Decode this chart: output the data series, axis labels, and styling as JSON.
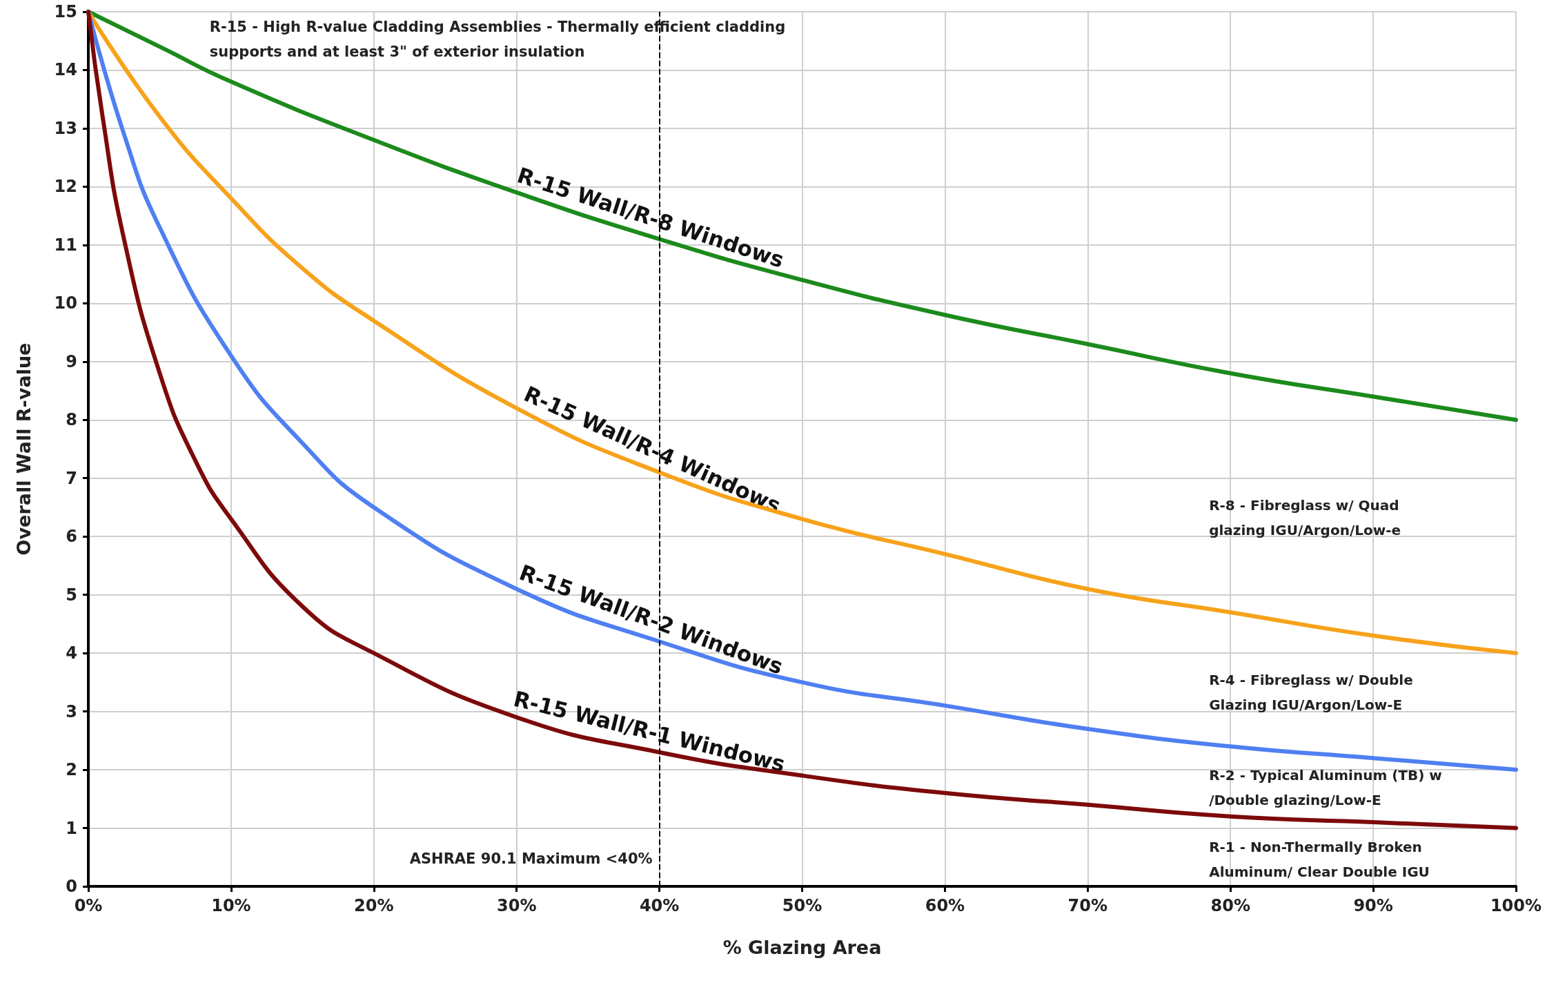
{
  "chart_data": {
    "type": "line",
    "xlabel": "% Glazing Area",
    "ylabel": "Overall Wall R-value",
    "xlim": [
      0,
      100
    ],
    "xticks": [
      {
        "value": 0,
        "label": "0%"
      },
      {
        "value": 10,
        "label": "10%"
      },
      {
        "value": 20,
        "label": "20%"
      },
      {
        "value": 30,
        "label": "30%"
      },
      {
        "value": 40,
        "label": "40%"
      },
      {
        "value": 50,
        "label": "50%"
      },
      {
        "value": 60,
        "label": "60%"
      },
      {
        "value": 70,
        "label": "70%"
      },
      {
        "value": 80,
        "label": "80%"
      },
      {
        "value": 90,
        "label": "90%"
      },
      {
        "value": 100,
        "label": "100%"
      }
    ],
    "ylim": [
      0,
      15
    ],
    "yticks": [
      0,
      1,
      2,
      3,
      4,
      5,
      6,
      7,
      8,
      9,
      10,
      11,
      12,
      13,
      14,
      15
    ],
    "grid": true,
    "legend": false,
    "marker": "none",
    "line_style": "solid",
    "series": [
      {
        "name": "R-15 Wall/R-8 Windows",
        "color": "#1c8a1c",
        "x": [
          0,
          5,
          10,
          20,
          30,
          40,
          50,
          60,
          70,
          80,
          90,
          100
        ],
        "values": [
          15,
          14.4,
          13.8,
          12.8,
          11.9,
          11.1,
          10.4,
          9.8,
          9.3,
          8.8,
          8.4,
          8
        ]
      },
      {
        "name": "R-15 Wall/R-4 Windows",
        "color": "#f7a21b",
        "x": [
          0,
          5,
          10,
          15,
          20,
          30,
          40,
          50,
          60,
          70,
          80,
          90,
          100
        ],
        "values": [
          15,
          13.2,
          11.8,
          10.6,
          9.7,
          8.2,
          7.1,
          6.3,
          5.7,
          5.1,
          4.7,
          4.3,
          4
        ]
      },
      {
        "name": "R-15 Wall/R-2 Windows",
        "color": "#4f7ff2",
        "x": [
          0,
          2.5,
          5,
          10,
          15,
          20,
          30,
          40,
          50,
          60,
          70,
          80,
          90,
          100
        ],
        "values": [
          15,
          12.9,
          11.3,
          9.1,
          7.6,
          6.5,
          5.1,
          4.2,
          3.5,
          3.1,
          2.7,
          2.4,
          2.2,
          2
        ]
      },
      {
        "name": "R-15 Wall/R-1 Windows",
        "color": "#7d0a0a",
        "x": [
          0,
          1,
          2.5,
          5,
          7.5,
          10,
          15,
          20,
          30,
          40,
          50,
          60,
          70,
          80,
          90,
          100
        ],
        "values": [
          15,
          13.2,
          11.1,
          8.8,
          7.3,
          6.3,
          4.8,
          4,
          2.9,
          2.3,
          1.9,
          1.6,
          1.4,
          1.2,
          1.1,
          1
        ]
      }
    ],
    "ref_lines": [
      {
        "axis": "x",
        "value": 40,
        "label": "ASHRAE 90.1 Maximum <40%",
        "color": "#000000",
        "line_style": "dashed"
      }
    ],
    "annotations": [
      "R-15 - High R-value Cladding Assemblies - Thermally efficient cladding supports and at least 3\" of exterior insulation",
      "R-8 - Fibreglass w/ Quad glazing IGU/Argon/Low-e",
      "R-4 - Fibreglass w/ Double Glazing IGU/Argon/Low-E",
      "R-2 - Typical Aluminum (TB) w/Double glazing/Low-E",
      "R-1 - Non-Thermally Broken Aluminum/ Clear Double IGU"
    ]
  }
}
